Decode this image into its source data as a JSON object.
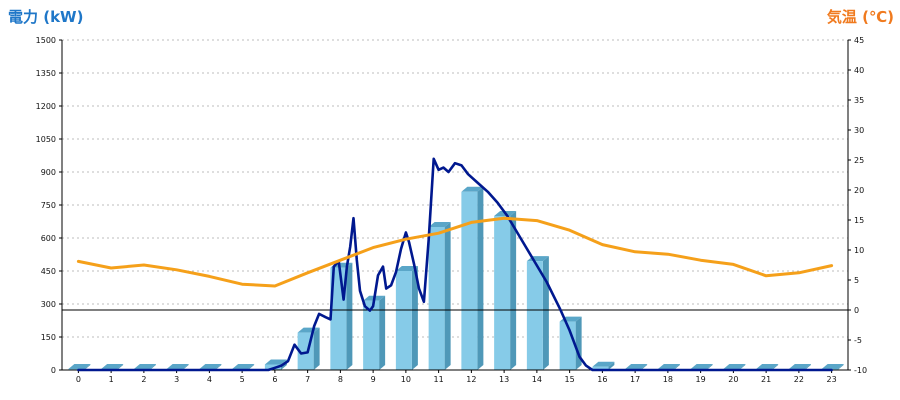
{
  "chart_data": {
    "type": "bar",
    "left_axis_title": "電力 (kW)",
    "right_axis_title": "気温 (℃)",
    "title_colors": {
      "left": "#1f77c8",
      "right": "#f07a1e"
    },
    "categories": [
      "0",
      "1",
      "2",
      "3",
      "4",
      "5",
      "6",
      "7",
      "8",
      "9",
      "10",
      "11",
      "12",
      "13",
      "14",
      "15",
      "16",
      "17",
      "18",
      "19",
      "20",
      "21",
      "22",
      "23"
    ],
    "power_ylim": [
      0,
      1500
    ],
    "power_ticks": [
      "0",
      "150",
      "300",
      "450",
      "600",
      "750",
      "900",
      "1050",
      "1200",
      "1350",
      "1500"
    ],
    "temp_ylim": [
      -10,
      45
    ],
    "temp_ticks": [
      "-10",
      "-5",
      "0",
      "5",
      "10",
      "15",
      "20",
      "25",
      "30",
      "35",
      "40",
      "45"
    ],
    "grid": "horizontal dashed",
    "series": [
      {
        "kind": "bars",
        "color": "#86cbe8",
        "values": [
          0,
          0,
          0,
          0,
          0,
          0,
          25,
          170,
          465,
          315,
          450,
          650,
          810,
          700,
          495,
          220,
          15,
          0,
          0,
          0,
          0,
          0,
          0,
          0
        ]
      },
      {
        "kind": "line",
        "axis": "left",
        "color": "#00188f",
        "points": [
          [
            0,
            0
          ],
          [
            1,
            0
          ],
          [
            2,
            0
          ],
          [
            3,
            0
          ],
          [
            4,
            0
          ],
          [
            5,
            0
          ],
          [
            5.8,
            0
          ],
          [
            6,
            10
          ],
          [
            6.2,
            20
          ],
          [
            6.4,
            40
          ],
          [
            6.6,
            115
          ],
          [
            6.8,
            75
          ],
          [
            7.0,
            80
          ],
          [
            7.2,
            200
          ],
          [
            7.35,
            255
          ],
          [
            7.55,
            240
          ],
          [
            7.7,
            230
          ],
          [
            7.8,
            470
          ],
          [
            7.95,
            495
          ],
          [
            8.1,
            320
          ],
          [
            8.2,
            470
          ],
          [
            8.3,
            560
          ],
          [
            8.4,
            690
          ],
          [
            8.5,
            500
          ],
          [
            8.6,
            360
          ],
          [
            8.75,
            290
          ],
          [
            8.9,
            270
          ],
          [
            9.0,
            290
          ],
          [
            9.15,
            430
          ],
          [
            9.3,
            470
          ],
          [
            9.4,
            370
          ],
          [
            9.55,
            385
          ],
          [
            9.7,
            445
          ],
          [
            9.85,
            550
          ],
          [
            10.0,
            625
          ],
          [
            10.1,
            580
          ],
          [
            10.25,
            480
          ],
          [
            10.4,
            370
          ],
          [
            10.55,
            310
          ],
          [
            10.7,
            600
          ],
          [
            10.85,
            960
          ],
          [
            11.0,
            910
          ],
          [
            11.15,
            920
          ],
          [
            11.3,
            900
          ],
          [
            11.5,
            940
          ],
          [
            11.7,
            930
          ],
          [
            11.9,
            890
          ],
          [
            12.2,
            850
          ],
          [
            12.5,
            810
          ],
          [
            12.8,
            760
          ],
          [
            13.1,
            700
          ],
          [
            13.5,
            600
          ],
          [
            13.9,
            500
          ],
          [
            14.3,
            400
          ],
          [
            14.7,
            280
          ],
          [
            15.0,
            180
          ],
          [
            15.3,
            60
          ],
          [
            15.5,
            20
          ],
          [
            15.7,
            0
          ],
          [
            16.2,
            0
          ],
          [
            17,
            0
          ],
          [
            18,
            0
          ],
          [
            19,
            0
          ],
          [
            20,
            0
          ],
          [
            21,
            0
          ],
          [
            22,
            0
          ],
          [
            23,
            0
          ]
        ]
      },
      {
        "kind": "line",
        "axis": "right",
        "color": "#f5a01a",
        "points": [
          [
            0,
            8.1
          ],
          [
            1,
            7.0
          ],
          [
            2,
            7.5
          ],
          [
            3,
            6.7
          ],
          [
            4,
            5.6
          ],
          [
            5,
            4.3
          ],
          [
            6,
            4.0
          ],
          [
            7,
            6.2
          ],
          [
            8,
            8.3
          ],
          [
            9,
            10.4
          ],
          [
            10,
            11.8
          ],
          [
            11,
            12.8
          ],
          [
            12,
            14.6
          ],
          [
            13,
            15.3
          ],
          [
            14,
            14.9
          ],
          [
            15,
            13.3
          ],
          [
            16,
            10.9
          ],
          [
            17,
            9.7
          ],
          [
            18,
            9.3
          ],
          [
            19,
            8.3
          ],
          [
            20,
            7.6
          ],
          [
            21,
            5.7
          ],
          [
            22,
            6.2
          ],
          [
            23,
            7.4
          ]
        ]
      }
    ]
  }
}
